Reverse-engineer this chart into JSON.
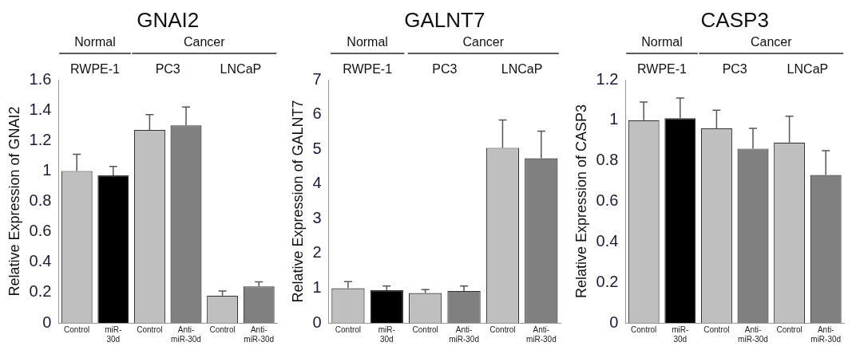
{
  "chart_data": [
    {
      "type": "bar",
      "title": "GNAI2",
      "ylabel": "Relative Expression of GNAI2",
      "categories": [
        "Control",
        "miR-30d",
        "Control",
        "Anti-miR-30d",
        "Control",
        "Anti-miR-30d"
      ],
      "values": [
        1.0,
        0.97,
        1.27,
        1.3,
        0.18,
        0.24
      ],
      "errors": [
        [
          1.0,
          1.11
        ],
        [
          0.97,
          1.03
        ],
        [
          1.27,
          1.37
        ],
        [
          1.3,
          1.42
        ],
        [
          0.18,
          0.21
        ],
        [
          0.24,
          0.27
        ]
      ],
      "colors": [
        "#bfbfbf",
        "#000000",
        "#bfbfbf",
        "#808080",
        "#bfbfbf",
        "#808080"
      ],
      "ylim": [
        0,
        1.6
      ],
      "yticks": [
        0,
        0.2,
        0.4,
        0.6,
        0.8,
        1,
        1.2,
        1.4,
        1.6
      ],
      "grid": false,
      "annotations": [
        "Normal",
        "Cancer",
        "RWPE-1",
        "PC3",
        "LNCaP"
      ]
    },
    {
      "type": "bar",
      "title": "GALNT7",
      "ylabel": "Relative Expression of GALNT7",
      "categories": [
        "Control",
        "miR-30d",
        "Control",
        "Anti-miR-30d",
        "Control",
        "Anti-miR-30d"
      ],
      "values": [
        1.0,
        0.94,
        0.86,
        0.92,
        5.04,
        4.74
      ],
      "errors": [
        [
          1.0,
          1.19
        ],
        [
          0.94,
          1.06
        ],
        [
          0.86,
          0.96
        ],
        [
          0.92,
          1.06
        ],
        [
          5.04,
          5.84
        ],
        [
          4.74,
          5.52
        ]
      ],
      "colors": [
        "#bfbfbf",
        "#000000",
        "#bfbfbf",
        "#808080",
        "#bfbfbf",
        "#808080"
      ],
      "ylim": [
        0,
        7
      ],
      "yticks": [
        0,
        1,
        2,
        3,
        4,
        5,
        6,
        7
      ],
      "grid": false,
      "annotations": [
        "Normal",
        "Cancer",
        "RWPE-1",
        "PC3",
        "LNCaP"
      ]
    },
    {
      "type": "bar",
      "title": "CASP3",
      "ylabel": "Relative Expression of CASP3",
      "categories": [
        "Control",
        "miR-30d",
        "Control",
        "Anti-miR-30d",
        "Control",
        "Anti-miR-30d"
      ],
      "values": [
        1.0,
        1.01,
        0.96,
        0.86,
        0.89,
        0.73
      ],
      "errors": [
        [
          1.0,
          1.09
        ],
        [
          1.01,
          1.11
        ],
        [
          0.96,
          1.05
        ],
        [
          0.86,
          0.96
        ],
        [
          0.89,
          1.02
        ],
        [
          0.73,
          0.85
        ]
      ],
      "colors": [
        "#bfbfbf",
        "#000000",
        "#bfbfbf",
        "#808080",
        "#bfbfbf",
        "#808080"
      ],
      "ylim": [
        0,
        1.2
      ],
      "yticks": [
        0,
        0.2,
        0.4,
        0.6,
        0.8,
        1,
        1.2
      ],
      "grid": false,
      "annotations": [
        "Normal",
        "Cancer",
        "RWPE-1",
        "PC3",
        "LNCaP"
      ]
    }
  ]
}
